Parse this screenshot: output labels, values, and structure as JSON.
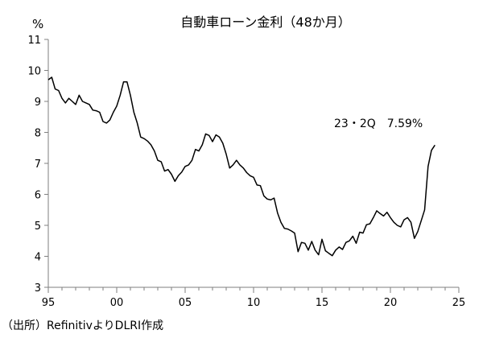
{
  "chart_data": {
    "type": "line",
    "title": "自動車ローン金利（48か月）",
    "ylabel": "%",
    "xlabel": "",
    "ylim": [
      3,
      11
    ],
    "xlim": [
      1995,
      2025
    ],
    "yticks": [
      3,
      4,
      5,
      6,
      7,
      8,
      9,
      10,
      11
    ],
    "xticks": [
      {
        "value": 1995,
        "label": "95"
      },
      {
        "value": 2000,
        "label": "00"
      },
      {
        "value": 2005,
        "label": "05"
      },
      {
        "value": 2010,
        "label": "10"
      },
      {
        "value": 2015,
        "label": "15"
      },
      {
        "value": 2020,
        "label": "20"
      },
      {
        "value": 2025,
        "label": "25"
      }
    ],
    "grid": false,
    "annotation": "23・2Q　7.59%",
    "series": [
      {
        "color": "#000000",
        "points": [
          [
            1995.0,
            9.7
          ],
          [
            1995.25,
            9.78
          ],
          [
            1995.5,
            9.4
          ],
          [
            1995.75,
            9.35
          ],
          [
            1996.0,
            9.1
          ],
          [
            1996.25,
            8.95
          ],
          [
            1996.5,
            9.1
          ],
          [
            1996.75,
            9.0
          ],
          [
            1997.0,
            8.9
          ],
          [
            1997.25,
            9.2
          ],
          [
            1997.5,
            9.0
          ],
          [
            1997.75,
            8.95
          ],
          [
            1998.0,
            8.9
          ],
          [
            1998.25,
            8.72
          ],
          [
            1998.5,
            8.7
          ],
          [
            1998.75,
            8.65
          ],
          [
            1999.0,
            8.35
          ],
          [
            1999.25,
            8.3
          ],
          [
            1999.5,
            8.4
          ],
          [
            1999.75,
            8.65
          ],
          [
            2000.0,
            8.85
          ],
          [
            2000.25,
            9.2
          ],
          [
            2000.5,
            9.63
          ],
          [
            2000.75,
            9.63
          ],
          [
            2001.0,
            9.2
          ],
          [
            2001.25,
            8.65
          ],
          [
            2001.5,
            8.3
          ],
          [
            2001.75,
            7.85
          ],
          [
            2002.0,
            7.8
          ],
          [
            2002.25,
            7.72
          ],
          [
            2002.5,
            7.6
          ],
          [
            2002.75,
            7.4
          ],
          [
            2003.0,
            7.1
          ],
          [
            2003.25,
            7.05
          ],
          [
            2003.5,
            6.75
          ],
          [
            2003.75,
            6.8
          ],
          [
            2004.0,
            6.65
          ],
          [
            2004.25,
            6.42
          ],
          [
            2004.5,
            6.6
          ],
          [
            2004.75,
            6.72
          ],
          [
            2005.0,
            6.9
          ],
          [
            2005.25,
            6.95
          ],
          [
            2005.5,
            7.1
          ],
          [
            2005.75,
            7.45
          ],
          [
            2006.0,
            7.4
          ],
          [
            2006.25,
            7.6
          ],
          [
            2006.5,
            7.95
          ],
          [
            2006.75,
            7.9
          ],
          [
            2007.0,
            7.7
          ],
          [
            2007.25,
            7.92
          ],
          [
            2007.5,
            7.85
          ],
          [
            2007.75,
            7.65
          ],
          [
            2008.0,
            7.3
          ],
          [
            2008.25,
            6.85
          ],
          [
            2008.5,
            6.95
          ],
          [
            2008.75,
            7.1
          ],
          [
            2009.0,
            6.95
          ],
          [
            2009.25,
            6.85
          ],
          [
            2009.5,
            6.7
          ],
          [
            2009.75,
            6.6
          ],
          [
            2010.0,
            6.55
          ],
          [
            2010.25,
            6.3
          ],
          [
            2010.5,
            6.28
          ],
          [
            2010.75,
            5.95
          ],
          [
            2011.0,
            5.85
          ],
          [
            2011.25,
            5.82
          ],
          [
            2011.5,
            5.88
          ],
          [
            2011.75,
            5.4
          ],
          [
            2012.0,
            5.1
          ],
          [
            2012.25,
            4.9
          ],
          [
            2012.5,
            4.88
          ],
          [
            2012.75,
            4.82
          ],
          [
            2013.0,
            4.75
          ],
          [
            2013.25,
            4.15
          ],
          [
            2013.5,
            4.45
          ],
          [
            2013.75,
            4.42
          ],
          [
            2014.0,
            4.2
          ],
          [
            2014.25,
            4.48
          ],
          [
            2014.5,
            4.2
          ],
          [
            2014.75,
            4.05
          ],
          [
            2015.0,
            4.55
          ],
          [
            2015.25,
            4.18
          ],
          [
            2015.5,
            4.1
          ],
          [
            2015.75,
            4.02
          ],
          [
            2016.0,
            4.2
          ],
          [
            2016.25,
            4.3
          ],
          [
            2016.5,
            4.22
          ],
          [
            2016.75,
            4.45
          ],
          [
            2017.0,
            4.5
          ],
          [
            2017.25,
            4.65
          ],
          [
            2017.5,
            4.42
          ],
          [
            2017.75,
            4.78
          ],
          [
            2018.0,
            4.75
          ],
          [
            2018.25,
            5.02
          ],
          [
            2018.5,
            5.05
          ],
          [
            2018.75,
            5.25
          ],
          [
            2019.0,
            5.47
          ],
          [
            2019.25,
            5.38
          ],
          [
            2019.5,
            5.3
          ],
          [
            2019.75,
            5.42
          ],
          [
            2020.0,
            5.25
          ],
          [
            2020.25,
            5.1
          ],
          [
            2020.5,
            5.0
          ],
          [
            2020.75,
            4.95
          ],
          [
            2021.0,
            5.18
          ],
          [
            2021.25,
            5.25
          ],
          [
            2021.5,
            5.1
          ],
          [
            2021.75,
            4.58
          ],
          [
            2022.0,
            4.8
          ],
          [
            2022.25,
            5.15
          ],
          [
            2022.5,
            5.5
          ],
          [
            2022.75,
            6.9
          ],
          [
            2023.0,
            7.42
          ],
          [
            2023.25,
            7.59
          ]
        ]
      }
    ]
  },
  "source_note": "（出所）RefinitivよりDLRI作成"
}
